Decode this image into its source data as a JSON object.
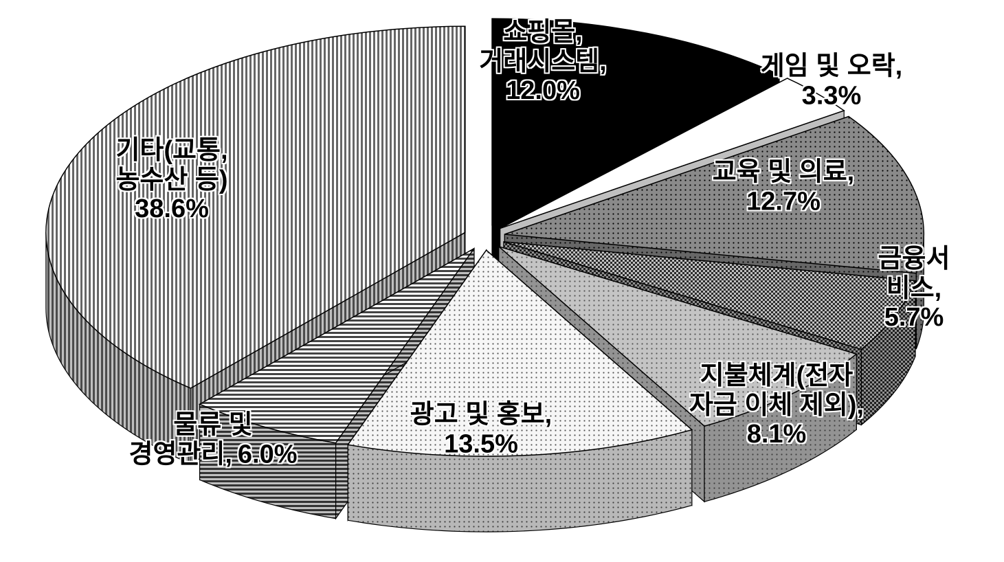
{
  "chart_data": {
    "type": "pie3d",
    "categories": [
      "쇼핑몰,\n거래시스템,",
      "게임 및 오락,",
      "교육 및 의료,",
      "금융서비스,",
      "지불체계(전자\n자금 이체 제외),",
      "광고 및 홍보,",
      "물류 및\n경영관리,",
      "기타(교통,\n농수산 등)"
    ],
    "values": [
      12.0,
      3.3,
      12.7,
      5.7,
      8.1,
      13.5,
      6.0,
      38.6
    ],
    "value_labels": [
      "12.0%",
      "3.3%",
      "12.7%",
      "5.7%",
      "8.1%",
      "13.5%",
      "6.0%",
      "38.6%"
    ],
    "colors": [
      "#000000",
      "#ffffff",
      "#8a8a8a",
      "#2a2a2a",
      "#c4c4c4",
      "#f6f6f6",
      "#444444",
      "#666666"
    ],
    "patterns": [
      "solid",
      "solid",
      "dots",
      "checker",
      "dots",
      "dots",
      "hstripes",
      "vstripes"
    ]
  }
}
